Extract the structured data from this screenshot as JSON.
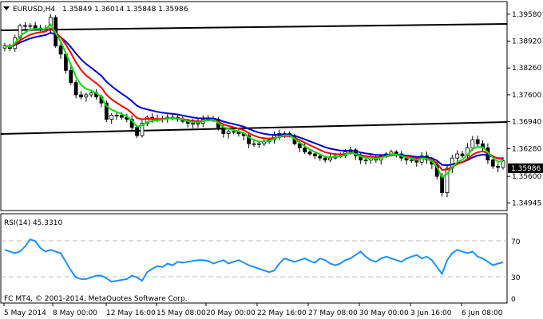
{
  "header": {
    "symbol": "EURUSD,H4",
    "ohlc": "1.35849 1.36014 1.35848 1.35986",
    "triangle_icon": "dropdown-triangle-icon"
  },
  "price_axis": {
    "labels": [
      "1.39580",
      "1.38920",
      "1.38260",
      "1.37600",
      "1.36940",
      "1.36280",
      "1.35600",
      "1.34945"
    ],
    "current_price": "1.35986"
  },
  "rsi": {
    "label": "RSI(14) 45.3310",
    "levels": [
      "70",
      "30",
      "0"
    ],
    "color": "#1e90ff"
  },
  "time_axis": {
    "labels": [
      "5 May 2014",
      "8 May 00:00",
      "12 May 16:00",
      "15 May 08:00",
      "20 May 00:00",
      "22 May 16:00",
      "27 May 08:00",
      "30 May 00:00",
      "3 Jun 16:00",
      "6 Jun 08:00"
    ]
  },
  "footer": {
    "copyright": "FC MT4, © 2001-2014, MetaQuotes Software Corp."
  },
  "colors": {
    "ma_fast": "#00e000",
    "ma_mid": "#ff0000",
    "ma_slow": "#0000d0",
    "rsi_line": "#1e90ff",
    "trendline": "#000000",
    "background": "#ffffff"
  },
  "chart_data": {
    "type": "line",
    "series": [
      {
        "values": [
          1.388,
          1.3874,
          1.39,
          1.393,
          1.3928,
          1.393,
          1.3924,
          1.3922,
          1.392,
          1.395,
          1.388,
          1.386,
          1.382,
          1.379,
          1.376,
          1.3755,
          1.376,
          1.3765,
          1.3755,
          1.374,
          1.37,
          1.371,
          1.371,
          1.3705,
          1.37,
          1.368,
          1.366,
          1.369,
          1.3705,
          1.37,
          1.37,
          1.3702,
          1.3705,
          1.3705,
          1.37,
          1.3695,
          1.369,
          1.369,
          1.369,
          1.37,
          1.3702,
          1.37,
          1.368,
          1.3665,
          1.367,
          1.367,
          1.3665,
          1.366,
          1.364,
          1.364,
          1.364,
          1.3645,
          1.365,
          1.366,
          1.3665,
          1.3665,
          1.366,
          1.364,
          1.363,
          1.362,
          1.3615,
          1.361,
          1.3605,
          1.36,
          1.3605,
          1.361,
          1.361,
          1.362,
          1.3625,
          1.361,
          1.36,
          1.36,
          1.3605,
          1.36,
          1.361,
          1.3615,
          1.362,
          1.3615,
          1.3605,
          1.36,
          1.36,
          1.3595,
          1.361,
          1.36,
          1.359,
          1.356,
          1.352,
          1.358,
          1.3605,
          1.3615,
          1.361,
          1.363,
          1.365,
          1.364,
          1.363,
          1.36,
          1.3585,
          1.3582,
          1.3598
        ]
      }
    ],
    "rsi_values": [
      60,
      58,
      56,
      58,
      64,
      72,
      70,
      62,
      58,
      60,
      58,
      56,
      46,
      36,
      28,
      26,
      26,
      28,
      30,
      30,
      27,
      23,
      24,
      25,
      26,
      30,
      28,
      24,
      34,
      38,
      41,
      40,
      44,
      42,
      46,
      45,
      46,
      47,
      48,
      48,
      47,
      44,
      46,
      48,
      44,
      46,
      48,
      45,
      42,
      40,
      38,
      36,
      34,
      36,
      44,
      50,
      48,
      46,
      48,
      50,
      47,
      45,
      50,
      48,
      44,
      42,
      44,
      48,
      50,
      54,
      58,
      52,
      48,
      46,
      50,
      52,
      50,
      48,
      46,
      50,
      52,
      54,
      50,
      52,
      48,
      40,
      32,
      48,
      56,
      60,
      58,
      56,
      58,
      52,
      50,
      46,
      42,
      44,
      45.331
    ],
    "ylim": [
      1.348,
      1.3985
    ],
    "rsi_ylim": [
      0,
      100
    ],
    "grid": false
  }
}
